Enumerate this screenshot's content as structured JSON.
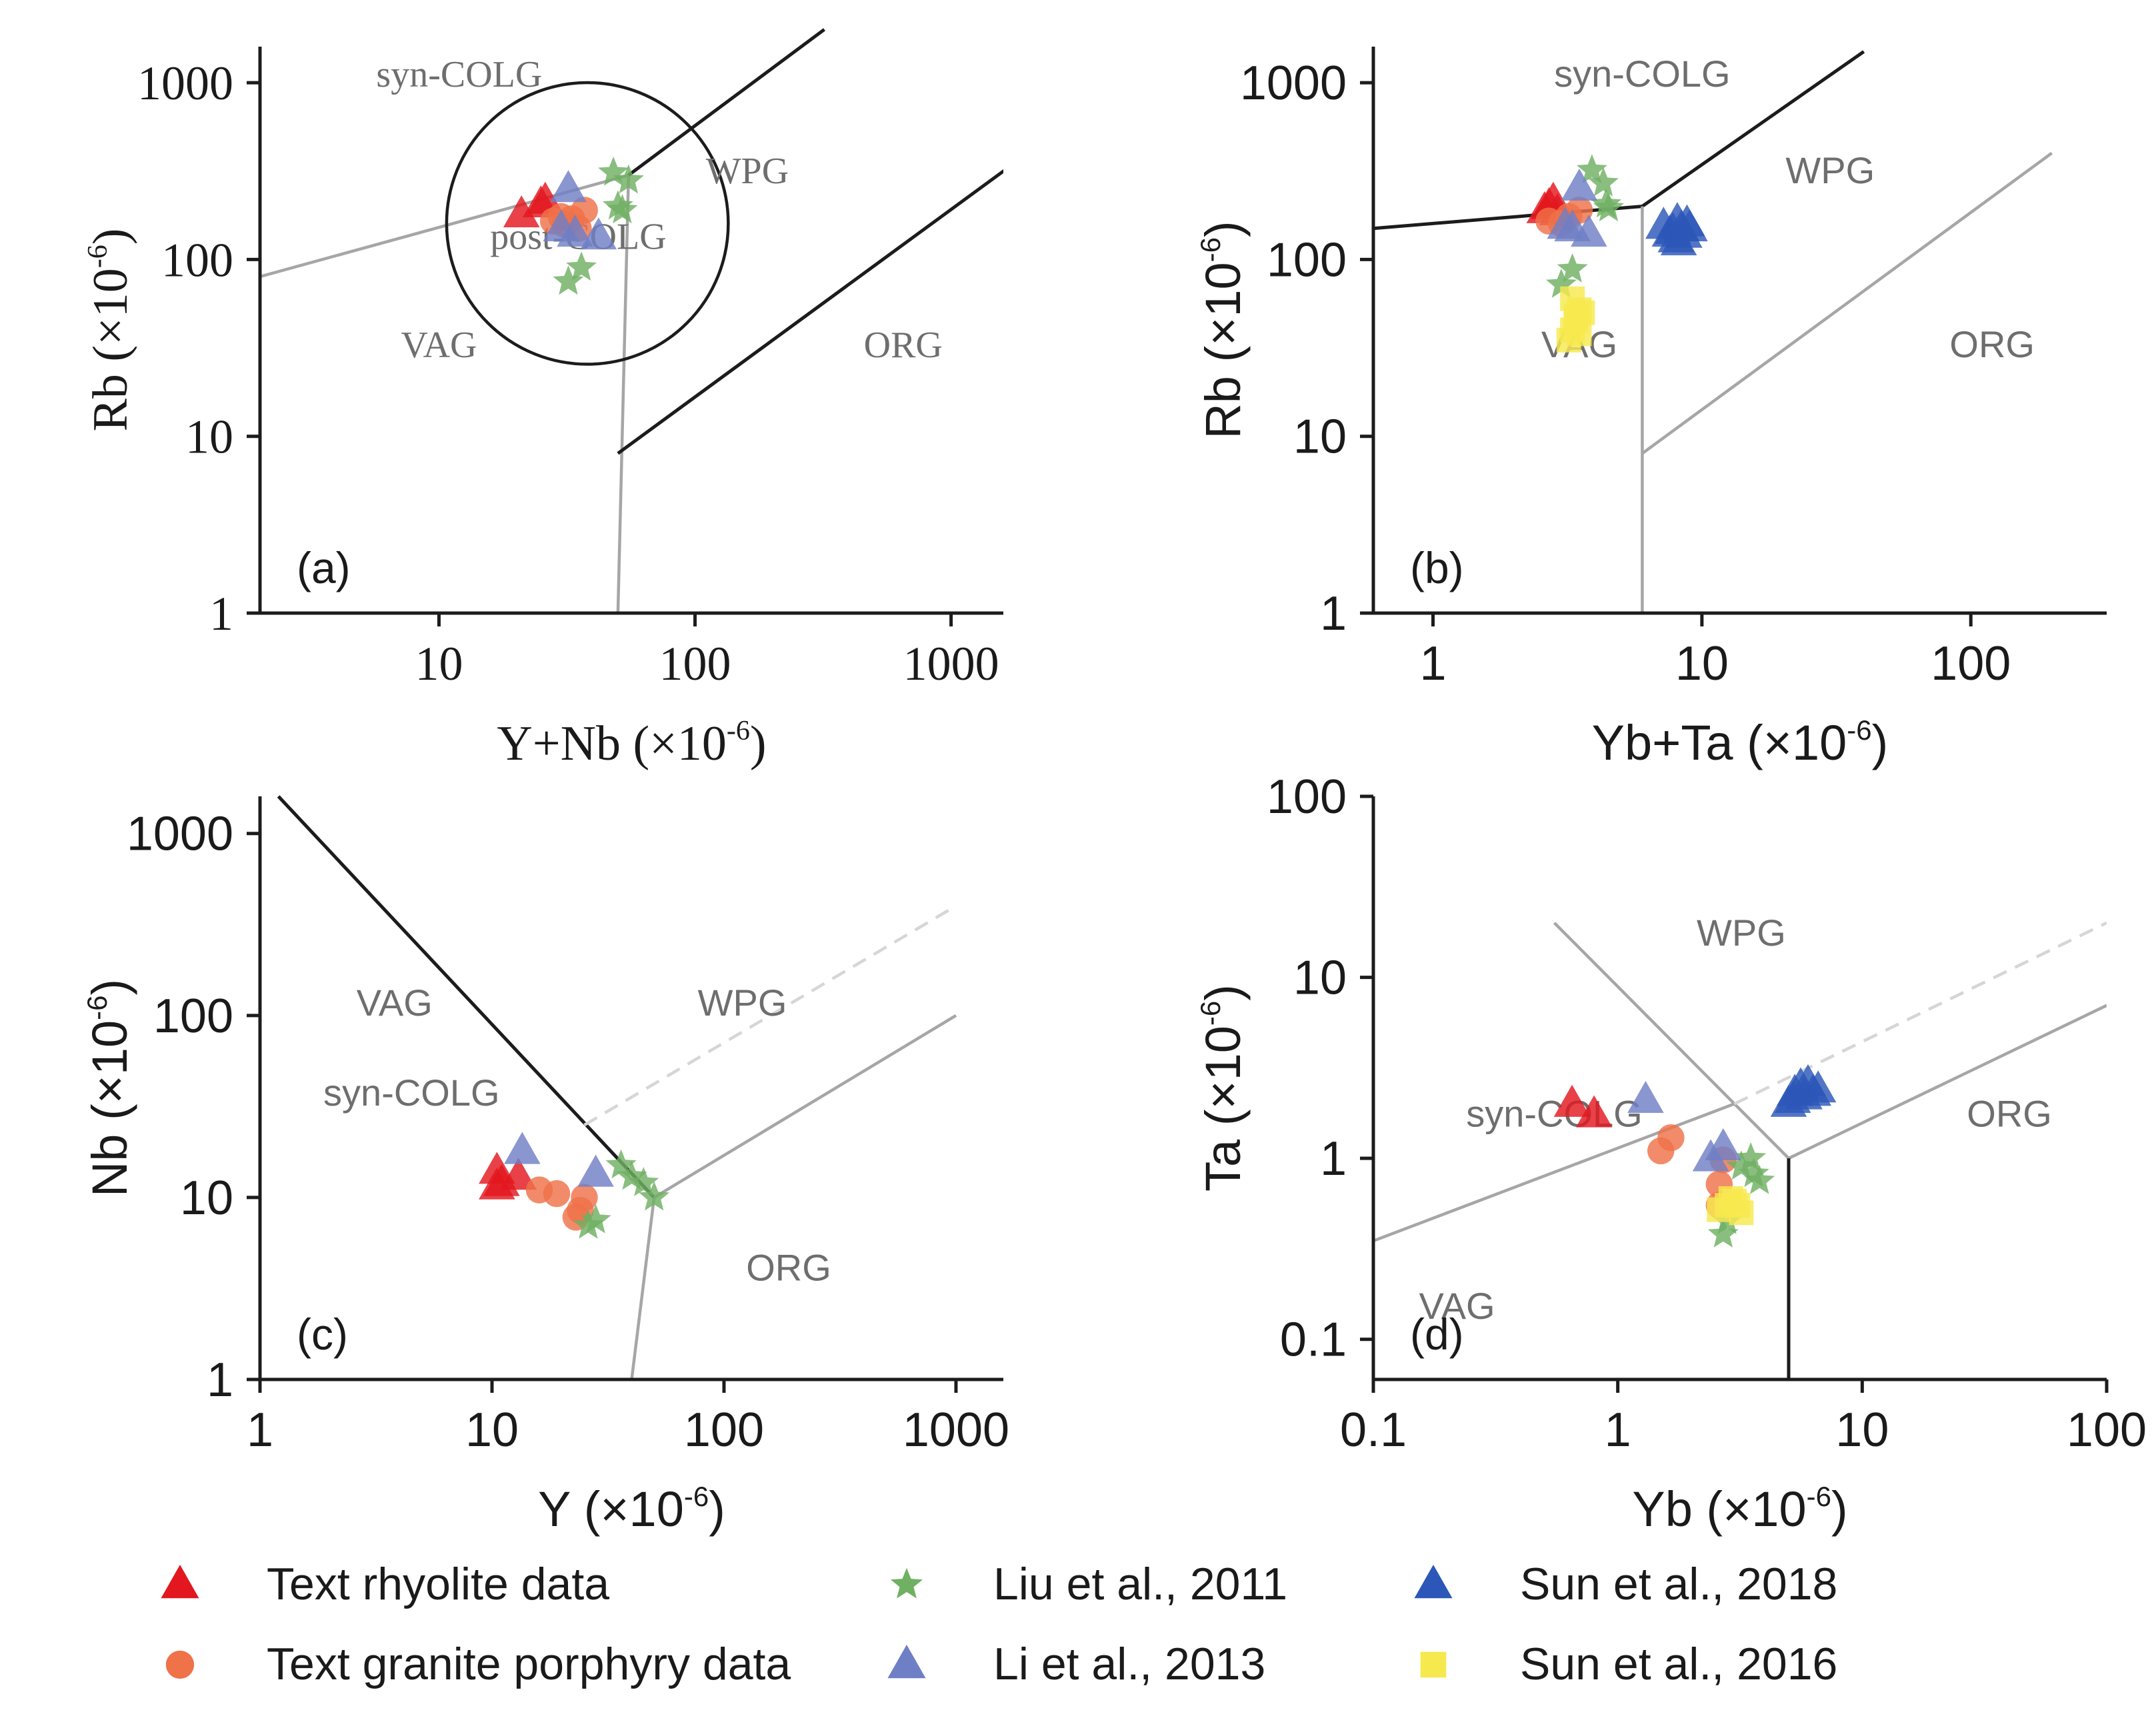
{
  "figure": {
    "legend": [
      {
        "label": "Text rhyolite data",
        "marker": "triangle",
        "color": "#e3171f"
      },
      {
        "label": "Liu et al., 2011",
        "marker": "star",
        "color": "#6fb063"
      },
      {
        "label": "Sun et al., 2018",
        "marker": "triangle",
        "color": "#2c57b8"
      },
      {
        "label": "Text granite porphyry data",
        "marker": "circle",
        "color": "#ef7249"
      },
      {
        "label": "Li et al., 2013",
        "marker": "triangle",
        "color": "#6f7fc6"
      },
      {
        "label": "Sun et al., 2016",
        "marker": "square",
        "color": "#f6e94e"
      }
    ]
  },
  "chart_data": [
    {
      "type": "scatter",
      "panel": "(a)",
      "xlabel": "Y+Nb (×10",
      "ylabel": "Rb (×10",
      "unit_exponent": "-6",
      "x_scale": "log",
      "y_scale": "log",
      "xlim": [
        2,
        1600
      ],
      "ylim": [
        1,
        1600
      ],
      "xticks": [
        10,
        100,
        1000
      ],
      "xtick_labels": [
        "10",
        "100",
        "1000"
      ],
      "yticks": [
        1,
        10,
        100,
        1000
      ],
      "ytick_labels": [
        "1",
        "10",
        "100",
        "1000"
      ],
      "fields": [
        {
          "label": "syn-COLG",
          "x": 12,
          "y": 950
        },
        {
          "label": "WPG",
          "x": 160,
          "y": 270
        },
        {
          "label": "post-COLG",
          "x": 35,
          "y": 115
        },
        {
          "label": "VAG",
          "x": 10,
          "y": 28
        },
        {
          "label": "ORG",
          "x": 650,
          "y": 28
        }
      ],
      "boundaries": [
        {
          "color": "gray",
          "points": [
            [
              2,
              80
            ],
            [
              55,
              300
            ]
          ]
        },
        {
          "color": "gray",
          "points": [
            [
              50,
              1
            ],
            [
              55,
              300
            ]
          ]
        },
        {
          "color": "black",
          "points": [
            [
              55,
              300
            ],
            [
              320,
              2000
            ]
          ]
        },
        {
          "color": "black",
          "points": [
            [
              50,
              8
            ],
            [
              2000,
              400
            ]
          ]
        }
      ],
      "circle": {
        "cx": 38,
        "cy": 160,
        "radius_decades": 0.55
      },
      "series": [
        {
          "name": "Text rhyolite data",
          "points": [
            [
              21,
              180
            ],
            [
              25,
              205
            ],
            [
              26,
              215
            ]
          ]
        },
        {
          "name": "Text granite porphyry data",
          "points": [
            [
              28,
              165
            ],
            [
              31,
              158
            ],
            [
              33,
              170
            ],
            [
              35,
              150
            ],
            [
              37,
              190
            ],
            [
              30,
              175
            ]
          ]
        },
        {
          "name": "Liu et al., 2011",
          "points": [
            [
              48,
              310
            ],
            [
              55,
              280
            ],
            [
              50,
              200
            ],
            [
              52,
              190
            ],
            [
              36,
              90
            ],
            [
              32,
              75
            ]
          ]
        },
        {
          "name": "Li et al., 2013",
          "points": [
            [
              32,
              250
            ],
            [
              30,
              150
            ],
            [
              42,
              135
            ],
            [
              34,
              140
            ]
          ]
        },
        {
          "name": "Sun et al., 2018",
          "points": []
        },
        {
          "name": "Sun et al., 2016",
          "points": []
        }
      ]
    },
    {
      "type": "scatter",
      "panel": "(b)",
      "xlabel": "Yb+Ta (×10",
      "ylabel": "Rb (×10",
      "unit_exponent": "-6",
      "x_scale": "log",
      "y_scale": "log",
      "xlim": [
        0.6,
        320
      ],
      "ylim": [
        1,
        1600
      ],
      "xticks": [
        1,
        10,
        100
      ],
      "xtick_labels": [
        "1",
        "10",
        "100"
      ],
      "yticks": [
        1,
        10,
        100,
        1000
      ],
      "ytick_labels": [
        "1",
        "10",
        "100",
        "1000"
      ],
      "fields": [
        {
          "label": "syn-COLG",
          "x": 6,
          "y": 950
        },
        {
          "label": "WPG",
          "x": 30,
          "y": 270
        },
        {
          "label": "VAG",
          "x": 3.5,
          "y": 28
        },
        {
          "label": "ORG",
          "x": 120,
          "y": 28
        }
      ],
      "boundaries": [
        {
          "color": "black",
          "points": [
            [
              0.6,
              150
            ],
            [
              6,
              200
            ]
          ]
        },
        {
          "color": "black",
          "points": [
            [
              6,
              200
            ],
            [
              40,
              1500
            ]
          ]
        },
        {
          "color": "gray",
          "points": [
            [
              6,
              1
            ],
            [
              6,
              200
            ]
          ]
        },
        {
          "color": "gray",
          "points": [
            [
              6,
              8
            ],
            [
              200,
              400
            ]
          ]
        }
      ],
      "series": [
        {
          "name": "Text rhyolite data",
          "points": [
            [
              2.6,
              190
            ],
            [
              2.7,
              200
            ],
            [
              2.8,
              215
            ],
            [
              2.9,
              185
            ]
          ]
        },
        {
          "name": "Text granite porphyry data",
          "points": [
            [
              2.7,
              165
            ],
            [
              3.0,
              160
            ],
            [
              3.2,
              175
            ],
            [
              3.5,
              190
            ]
          ]
        },
        {
          "name": "Liu et al., 2011",
          "points": [
            [
              3.9,
              320
            ],
            [
              4.3,
              270
            ],
            [
              4.4,
              205
            ],
            [
              4.5,
              195
            ],
            [
              3.3,
              88
            ],
            [
              3.0,
              72
            ]
          ]
        },
        {
          "name": "Li et al., 2013",
          "points": [
            [
              3.5,
              255
            ],
            [
              3.3,
              150
            ],
            [
              3.8,
              140
            ],
            [
              3.1,
              155
            ]
          ]
        },
        {
          "name": "Sun et al., 2018",
          "points": [
            [
              7.2,
              155
            ],
            [
              7.6,
              140
            ],
            [
              8.0,
              130
            ],
            [
              8.4,
              150
            ],
            [
              8.8,
              160
            ],
            [
              8.2,
              125
            ],
            [
              7.8,
              145
            ],
            [
              8.6,
              138
            ],
            [
              9.0,
              150
            ],
            [
              8.1,
              165
            ]
          ]
        },
        {
          "name": "Sun et al., 2016",
          "points": [
            [
              3.2,
              35
            ],
            [
              3.3,
              40
            ],
            [
              3.4,
              45
            ],
            [
              3.5,
              52
            ],
            [
              3.6,
              50
            ],
            [
              3.3,
              60
            ],
            [
              3.4,
              48
            ],
            [
              3.5,
              38
            ]
          ]
        }
      ]
    },
    {
      "type": "scatter",
      "panel": "(c)",
      "xlabel": "Y (×10",
      "ylabel": "Nb (×10",
      "unit_exponent": "-6",
      "x_scale": "log",
      "y_scale": "log",
      "xlim": [
        1,
        1600
      ],
      "ylim": [
        1,
        1600
      ],
      "xticks": [
        1,
        10,
        100,
        1000
      ],
      "xtick_labels": [
        "1",
        "10",
        "100",
        "1000"
      ],
      "yticks": [
        1,
        10,
        100,
        1000
      ],
      "ytick_labels": [
        "1",
        "10",
        "100",
        "1000"
      ],
      "fields": [
        {
          "label": "VAG",
          "x": 3.8,
          "y": 100
        },
        {
          "label": "syn-COLG",
          "x": 4.5,
          "y": 32
        },
        {
          "label": "WPG",
          "x": 120,
          "y": 100
        },
        {
          "label": "ORG",
          "x": 190,
          "y": 3.5
        }
      ],
      "boundaries": [
        {
          "color": "black",
          "points": [
            [
              1.2,
              1600
            ],
            [
              50,
              10
            ]
          ]
        },
        {
          "color": "gray",
          "points": [
            [
              50,
              10
            ],
            [
              1000,
              100
            ]
          ]
        },
        {
          "color": "gray",
          "points": [
            [
              40,
              1
            ],
            [
              50,
              10
            ]
          ]
        },
        {
          "color": "lightgray",
          "dashed": true,
          "points": [
            [
              25,
              25
            ],
            [
              1000,
              400
            ]
          ]
        }
      ],
      "series": [
        {
          "name": "Text rhyolite data",
          "points": [
            [
              10.5,
              14
            ],
            [
              11,
              12
            ],
            [
              13,
              13
            ],
            [
              10.5,
              11.5
            ]
          ]
        },
        {
          "name": "Text granite porphyry data",
          "points": [
            [
              16,
              11
            ],
            [
              19,
              10.5
            ],
            [
              25,
              10
            ],
            [
              24,
              8.5
            ],
            [
              23,
              7.8
            ]
          ]
        },
        {
          "name": "Liu et al., 2011",
          "points": [
            [
              36,
              15
            ],
            [
              40,
              13
            ],
            [
              45,
              12
            ],
            [
              50,
              10
            ],
            [
              26,
              7
            ],
            [
              28,
              7.5
            ]
          ]
        },
        {
          "name": "Li et al., 2013",
          "points": [
            [
              13.5,
              18
            ],
            [
              28,
              13.5
            ]
          ]
        },
        {
          "name": "Sun et al., 2018",
          "points": []
        },
        {
          "name": "Sun et al., 2016",
          "points": []
        }
      ]
    },
    {
      "type": "scatter",
      "panel": "(d)",
      "xlabel": "Yb (×10",
      "ylabel": "Ta (×10",
      "unit_exponent": "-6",
      "x_scale": "log",
      "y_scale": "log",
      "xlim": [
        0.1,
        100
      ],
      "ylim": [
        0.06,
        100
      ],
      "xticks": [
        0.1,
        1,
        10,
        100
      ],
      "xtick_labels": [
        "0.1",
        "1",
        "10",
        "100"
      ],
      "yticks": [
        0.1,
        1,
        10,
        100
      ],
      "ytick_labels": [
        "0.1",
        "1",
        "10",
        "100"
      ],
      "fields": [
        {
          "label": "WPG",
          "x": 3.2,
          "y": 15
        },
        {
          "label": "syn-COLG",
          "x": 0.55,
          "y": 1.5
        },
        {
          "label": "ORG",
          "x": 40,
          "y": 1.5
        },
        {
          "label": "VAG",
          "x": 0.22,
          "y": 0.13
        }
      ],
      "boundaries": [
        {
          "color": "gray",
          "points": [
            [
              0.1,
              0.35
            ],
            [
              3,
              2
            ]
          ]
        },
        {
          "color": "gray",
          "points": [
            [
              0.55,
              20
            ],
            [
              5,
              1
            ]
          ]
        },
        {
          "color": "gray",
          "points": [
            [
              5,
              1
            ],
            [
              100,
              7
            ]
          ]
        },
        {
          "color": "black",
          "points": [
            [
              5,
              0.06
            ],
            [
              5,
              1
            ]
          ]
        },
        {
          "color": "lightgray",
          "dashed": true,
          "points": [
            [
              3,
              2
            ],
            [
              100,
              20
            ]
          ]
        }
      ],
      "series": [
        {
          "name": "Text rhyolite data",
          "points": [
            [
              0.65,
              2.0
            ],
            [
              0.8,
              1.75
            ]
          ]
        },
        {
          "name": "Text granite porphyry data",
          "points": [
            [
              1.5,
              1.1
            ],
            [
              1.65,
              1.3
            ],
            [
              2.6,
              0.72
            ],
            [
              2.6,
              0.55
            ],
            [
              2.7,
              0.98
            ]
          ]
        },
        {
          "name": "Liu et al., 2011",
          "points": [
            [
              3.2,
              0.9
            ],
            [
              3.5,
              1.0
            ],
            [
              3.8,
              0.75
            ],
            [
              3.6,
              0.82
            ],
            [
              2.7,
              0.38
            ],
            [
              2.8,
              0.45
            ]
          ]
        },
        {
          "name": "Li et al., 2013",
          "points": [
            [
              1.3,
              2.1
            ],
            [
              2.4,
              1.0
            ],
            [
              2.7,
              1.15
            ]
          ]
        },
        {
          "name": "Sun et al., 2018",
          "points": [
            [
              5.0,
              2.0
            ],
            [
              5.3,
              2.3
            ],
            [
              5.6,
              2.5
            ],
            [
              6.0,
              2.6
            ],
            [
              6.3,
              2.3
            ],
            [
              5.8,
              2.2
            ],
            [
              6.6,
              2.4
            ],
            [
              5.2,
              2.1
            ]
          ]
        },
        {
          "name": "Sun et al., 2016",
          "points": [
            [
              2.6,
              0.52
            ],
            [
              2.8,
              0.55
            ],
            [
              3.0,
              0.58
            ],
            [
              3.2,
              0.5
            ],
            [
              2.9,
              0.6
            ],
            [
              3.1,
              0.55
            ]
          ]
        }
      ]
    }
  ]
}
